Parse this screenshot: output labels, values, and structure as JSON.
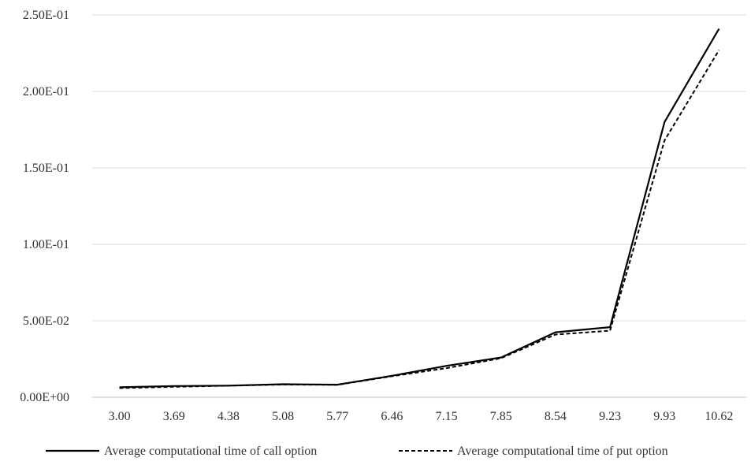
{
  "chart_data": {
    "type": "line",
    "title": "",
    "xlabel": "",
    "ylabel": "",
    "categories": [
      "3.00",
      "3.69",
      "4.38",
      "5.08",
      "5.77",
      "6.46",
      "7.15",
      "7.85",
      "8.54",
      "9.23",
      "9.93",
      "10.62"
    ],
    "y_ticks": [
      "0.00E+00",
      "5.00E-02",
      "1.00E-01",
      "1.50E-01",
      "2.00E-01",
      "2.50E-01"
    ],
    "ylim": [
      0,
      0.25
    ],
    "grid": "horizontal",
    "legend_position": "bottom",
    "series": [
      {
        "name": "Average computational time of call option",
        "style": "solid",
        "color": "#000000",
        "values": [
          0.0065,
          0.0073,
          0.0076,
          0.0085,
          0.0082,
          0.014,
          0.0205,
          0.026,
          0.0425,
          0.0458,
          0.18,
          0.241
        ]
      },
      {
        "name": "Average computational time of put option",
        "style": "dashed",
        "color": "#000000",
        "values": [
          0.006,
          0.0068,
          0.0075,
          0.0083,
          0.0081,
          0.0137,
          0.019,
          0.0255,
          0.041,
          0.0435,
          0.168,
          0.227
        ]
      }
    ]
  }
}
